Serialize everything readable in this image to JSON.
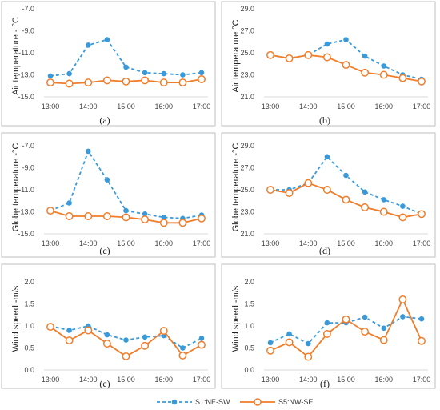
{
  "chart_data": [
    {
      "type": "line",
      "caption": "(a)",
      "ylabel": "Air temperature - °C",
      "x": [
        "13:00",
        "13:30",
        "14:00",
        "14:30",
        "15:00",
        "15:30",
        "16:00",
        "16:30",
        "17:00"
      ],
      "x_ticks": [
        "13:00",
        "14:00",
        "15:00",
        "16:00",
        "17:00"
      ],
      "ylim": [
        -15.0,
        -7.0
      ],
      "y_ticks": [
        "-15.0",
        "-13.0",
        "-11.0",
        "-9.0",
        "-7.0"
      ],
      "series": [
        {
          "name": "S1:NE-SW",
          "values": [
            -13.1,
            -12.9,
            -10.3,
            -9.8,
            -12.3,
            -12.8,
            -12.9,
            -13.0,
            -12.8
          ]
        },
        {
          "name": "S5:NW-SE",
          "values": [
            -13.7,
            -13.8,
            -13.7,
            -13.5,
            -13.6,
            -13.5,
            -13.7,
            -13.7,
            -13.4
          ]
        }
      ]
    },
    {
      "type": "line",
      "caption": "(b)",
      "ylabel": "Air temperature °C",
      "x": [
        "13:00",
        "13:30",
        "14:00",
        "14:30",
        "15:00",
        "15:30",
        "16:00",
        "16:30",
        "17:00"
      ],
      "x_ticks": [
        "13:00",
        "14:00",
        "15:00",
        "16:00",
        "17:00"
      ],
      "ylim": [
        21.0,
        29.0
      ],
      "y_ticks": [
        "21.0",
        "23.0",
        "25.0",
        "27.0",
        "29.0"
      ],
      "series": [
        {
          "name": "S1:NE-SW",
          "values": [
            24.8,
            24.5,
            24.8,
            25.8,
            26.2,
            24.7,
            23.8,
            23.0,
            22.6
          ]
        },
        {
          "name": "S5:NW-SE",
          "values": [
            24.8,
            24.5,
            24.8,
            24.6,
            23.9,
            23.2,
            23.0,
            22.7,
            22.4
          ]
        }
      ]
    },
    {
      "type": "line",
      "caption": "(c)",
      "ylabel": "Globe temperature -°C",
      "x": [
        "13:00",
        "13:30",
        "14:00",
        "14:30",
        "15:00",
        "15:30",
        "16:00",
        "16:30",
        "17:00"
      ],
      "x_ticks": [
        "13:00",
        "14:00",
        "15:00",
        "16:00",
        "17:00"
      ],
      "ylim": [
        -15.0,
        -7.0
      ],
      "y_ticks": [
        "-15.0",
        "-13.0",
        "-11.0",
        "-9.0",
        "-7.0"
      ],
      "series": [
        {
          "name": "S1:NE-SW",
          "values": [
            -12.9,
            -12.2,
            -7.5,
            -10.1,
            -12.9,
            -13.2,
            -13.5,
            -13.6,
            -13.3
          ]
        },
        {
          "name": "S5:NW-SE",
          "values": [
            -12.9,
            -13.4,
            -13.4,
            -13.4,
            -13.5,
            -13.7,
            -14.0,
            -14.0,
            -13.6
          ]
        }
      ]
    },
    {
      "type": "line",
      "caption": "(d)",
      "ylabel": "Globe temperature -°C",
      "x": [
        "13:00",
        "13:30",
        "14:00",
        "14:30",
        "15:00",
        "15:30",
        "16:00",
        "16:30",
        "17:00"
      ],
      "x_ticks": [
        "13:00",
        "14:00",
        "15:00",
        "16:00",
        "17:00"
      ],
      "ylim": [
        21.0,
        29.0
      ],
      "y_ticks": [
        "21.0",
        "23.0",
        "25.0",
        "27.0",
        "29.0"
      ],
      "series": [
        {
          "name": "S1:NE-SW",
          "values": [
            25.0,
            25.0,
            25.6,
            28.0,
            26.3,
            24.8,
            24.1,
            23.5,
            22.8
          ]
        },
        {
          "name": "S5:NW-SE",
          "values": [
            25.0,
            24.7,
            25.6,
            25.0,
            24.1,
            23.4,
            23.0,
            22.5,
            22.8
          ]
        }
      ]
    },
    {
      "type": "line",
      "caption": "(e)",
      "ylabel": "Wind speed -m/s",
      "x": [
        "13:00",
        "13:30",
        "14:00",
        "14:30",
        "15:00",
        "15:30",
        "16:00",
        "16:30",
        "17:00"
      ],
      "x_ticks": [
        "13:00",
        "14:00",
        "15:00",
        "16:00",
        "17:00"
      ],
      "ylim": [
        0.0,
        2.0
      ],
      "y_ticks": [
        "0.0",
        "0.5",
        "1.0",
        "1.5",
        "2.0"
      ],
      "series": [
        {
          "name": "S1:NE-SW",
          "values": [
            1.0,
            0.9,
            1.0,
            0.8,
            0.68,
            0.75,
            0.78,
            0.5,
            0.72
          ]
        },
        {
          "name": "S5:NW-SE",
          "values": [
            0.98,
            0.67,
            0.9,
            0.6,
            0.31,
            0.55,
            0.89,
            0.33,
            0.57
          ]
        }
      ]
    },
    {
      "type": "line",
      "caption": "(f)",
      "ylabel": "Wind speed -m/s",
      "x": [
        "13:00",
        "13:30",
        "14:00",
        "14:30",
        "15:00",
        "15:30",
        "16:00",
        "16:30",
        "17:00"
      ],
      "x_ticks": [
        "13:00",
        "14:00",
        "15:00",
        "16:00",
        "17:00"
      ],
      "ylim": [
        0.0,
        2.0
      ],
      "y_ticks": [
        "0.0",
        "0.5",
        "1.0",
        "1.5",
        "2.0"
      ],
      "series": [
        {
          "name": "S1:NE-SW",
          "values": [
            0.62,
            0.82,
            0.6,
            1.07,
            1.07,
            1.2,
            0.95,
            1.21,
            1.16
          ]
        },
        {
          "name": "S5:NW-SE",
          "values": [
            0.44,
            0.63,
            0.3,
            0.82,
            1.15,
            0.87,
            0.68,
            1.6,
            0.66
          ]
        }
      ]
    }
  ],
  "legend": {
    "items": [
      {
        "label": "S1:NE-SW",
        "color": "#3a9ad9",
        "style": "dashed",
        "marker": "filled-circle"
      },
      {
        "label": "S5:NW-SE",
        "color": "#f07d2a",
        "style": "solid",
        "marker": "open-circle"
      }
    ]
  },
  "colors": {
    "s1": "#3a9ad9",
    "s5": "#f07d2a",
    "axis": "#d9d9d9",
    "frame": "#bfbfbf"
  }
}
